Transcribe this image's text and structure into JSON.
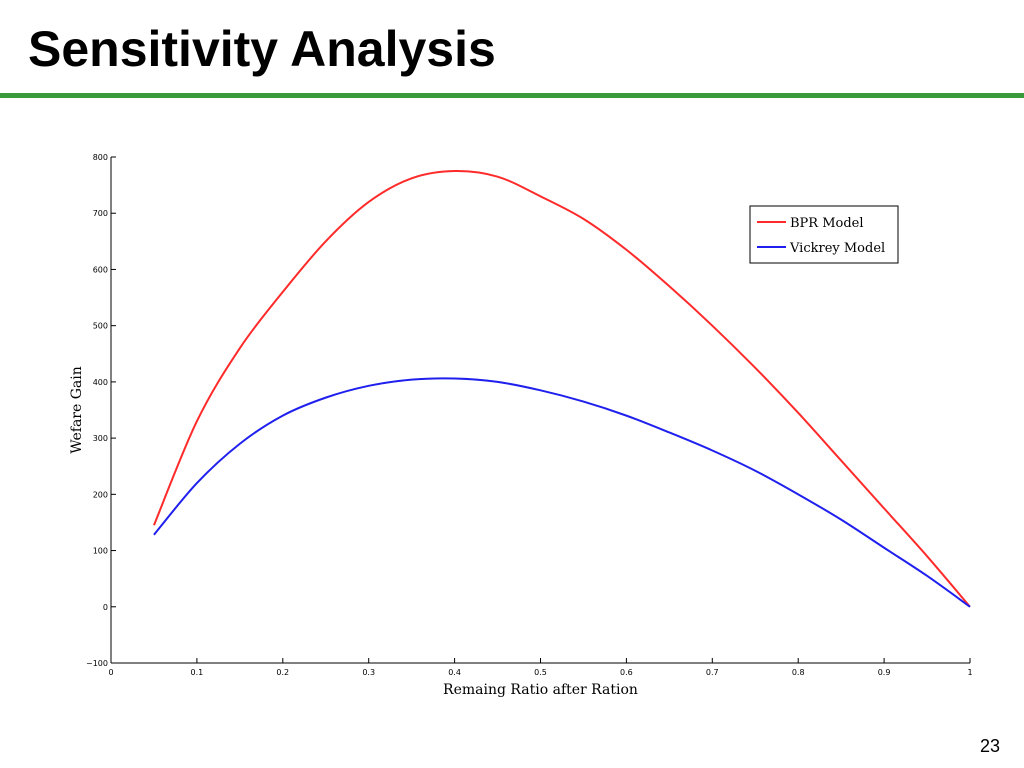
{
  "slide": {
    "title": "Sensitivity Analysis",
    "page_number": "23",
    "rule_color": "#3a9a3a"
  },
  "chart_data": {
    "type": "line",
    "xlabel": "Remaing Ratio after Ration",
    "ylabel": "Wefare Gain",
    "xlim": [
      0,
      1
    ],
    "ylim": [
      -100,
      800
    ],
    "xticks": [
      0,
      0.1,
      0.2,
      0.3,
      0.4,
      0.5,
      0.6,
      0.7,
      0.8,
      0.9,
      1
    ],
    "xtick_labels": [
      "0",
      "0.1",
      "0.2",
      "0.3",
      "0.4",
      "0.5",
      "0.6",
      "0.7",
      "0.8",
      "0.9",
      "1"
    ],
    "yticks": [
      -100,
      0,
      100,
      200,
      300,
      400,
      500,
      600,
      700,
      800
    ],
    "ytick_labels": [
      "−100",
      "0",
      "100",
      "200",
      "300",
      "400",
      "500",
      "600",
      "700",
      "800"
    ],
    "grid": false,
    "legend_position": "top-right",
    "series": [
      {
        "name": "BPR Model",
        "color": "#ff2a2a",
        "x": [
          0.05,
          0.1,
          0.15,
          0.2,
          0.25,
          0.3,
          0.35,
          0.4,
          0.45,
          0.5,
          0.55,
          0.6,
          0.65,
          0.7,
          0.75,
          0.8,
          0.85,
          0.9,
          0.95,
          1.0
        ],
        "y": [
          145,
          330,
          460,
          560,
          650,
          720,
          762,
          775,
          765,
          730,
          690,
          635,
          570,
          500,
          425,
          345,
          260,
          175,
          90,
          0
        ]
      },
      {
        "name": "Vickrey Model",
        "color": "#2020ee",
        "x": [
          0.05,
          0.1,
          0.15,
          0.2,
          0.25,
          0.3,
          0.35,
          0.4,
          0.45,
          0.5,
          0.55,
          0.6,
          0.65,
          0.7,
          0.75,
          0.8,
          0.85,
          0.9,
          0.95,
          1.0
        ],
        "y": [
          128,
          220,
          290,
          340,
          372,
          393,
          404,
          406,
          400,
          385,
          365,
          340,
          310,
          278,
          242,
          200,
          155,
          105,
          55,
          0
        ]
      }
    ]
  }
}
